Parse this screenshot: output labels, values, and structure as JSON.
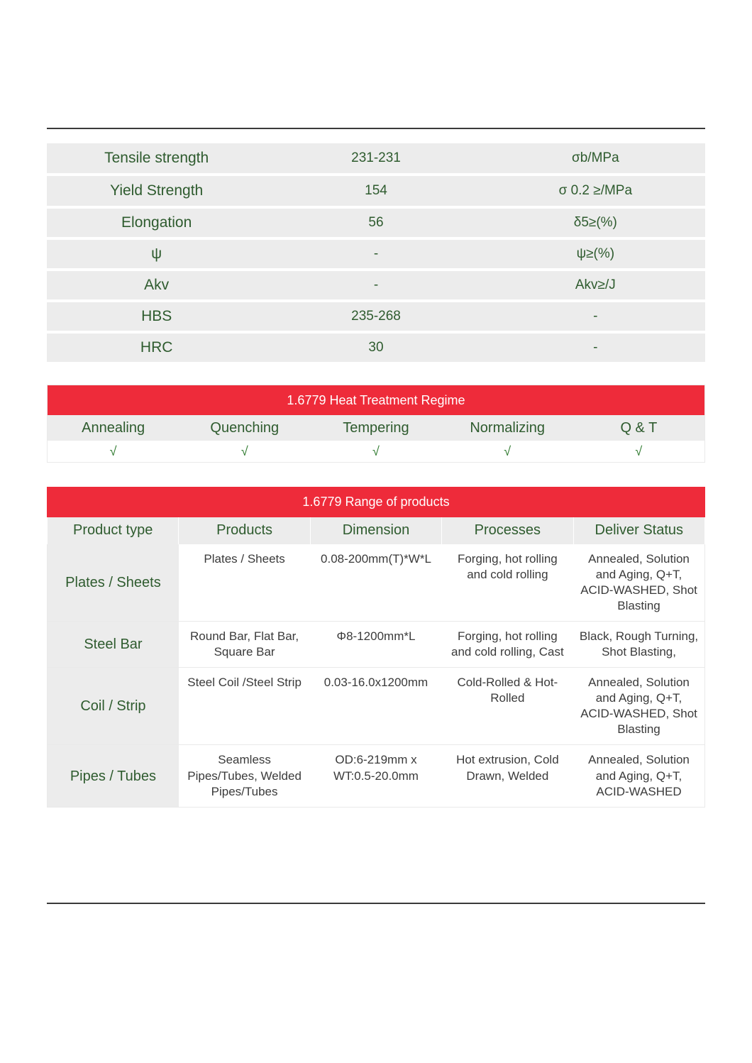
{
  "colors": {
    "header_bg": "#ee2b3a",
    "header_text": "#ffffff",
    "zebra_bg": "#ececec",
    "text_main": "#2e5b2e",
    "text_body": "#3a3a3a",
    "tick_color": "#2e7a2e",
    "rule_color": "#3a3a3a",
    "border_color": "#e9e9e9",
    "page_bg": "#ffffff"
  },
  "mechanical": {
    "col_widths_pct": [
      33.3,
      33.3,
      33.4
    ],
    "rows": [
      {
        "label": "Tensile strength",
        "value": "231-231",
        "unit": "σb/MPa",
        "tall": true
      },
      {
        "label": "Yield Strength",
        "value": "154",
        "unit": "σ 0.2 ≥/MPa",
        "tall": true
      },
      {
        "label": "Elongation",
        "value": "56",
        "unit": "δ5≥(%)"
      },
      {
        "label": "ψ",
        "value": "-",
        "unit": "ψ≥(%)"
      },
      {
        "label": "Akv",
        "value": "-",
        "unit": "Akv≥/J"
      },
      {
        "label": "HBS",
        "value": "235-268",
        "unit": "-"
      },
      {
        "label": "HRC",
        "value": "30",
        "unit": "-"
      }
    ]
  },
  "heat_treatment": {
    "title": "1.6779 Heat Treatment Regime",
    "headers": [
      "Annealing",
      "Quenching",
      "Tempering",
      "Normalizing",
      "Q & T"
    ],
    "ticks": [
      "√",
      "√",
      "√",
      "√",
      "√"
    ]
  },
  "range_products": {
    "title": "1.6779 Range of products",
    "headers": [
      "Product type",
      "Products",
      "Dimension",
      "Processes",
      "Deliver Status"
    ],
    "rows": [
      {
        "type": "Plates / Sheets",
        "products": "Plates / Sheets",
        "dimension": "0.08-200mm(T)*W*L",
        "processes": "Forging, hot rolling and cold rolling",
        "deliver": "Annealed, Solution and Aging, Q+T, ACID-WASHED, Shot Blasting"
      },
      {
        "type": "Steel Bar",
        "products": "Round Bar, Flat Bar, Square Bar",
        "dimension": "Φ8-1200mm*L",
        "processes": "Forging, hot rolling and cold rolling, Cast",
        "deliver": "Black, Rough Turning, Shot Blasting,"
      },
      {
        "type": "Coil / Strip",
        "products": "Steel Coil /Steel Strip",
        "dimension": "0.03-16.0x1200mm",
        "processes": "Cold-Rolled & Hot-Rolled",
        "deliver": "Annealed, Solution and Aging, Q+T, ACID-WASHED, Shot Blasting"
      },
      {
        "type": "Pipes / Tubes",
        "products": "Seamless Pipes/Tubes, Welded Pipes/Tubes",
        "dimension": "OD:6-219mm x WT:0.5-20.0mm",
        "processes": "Hot extrusion, Cold Drawn, Welded",
        "deliver": "Annealed, Solution and Aging, Q+T, ACID-WASHED"
      }
    ]
  }
}
